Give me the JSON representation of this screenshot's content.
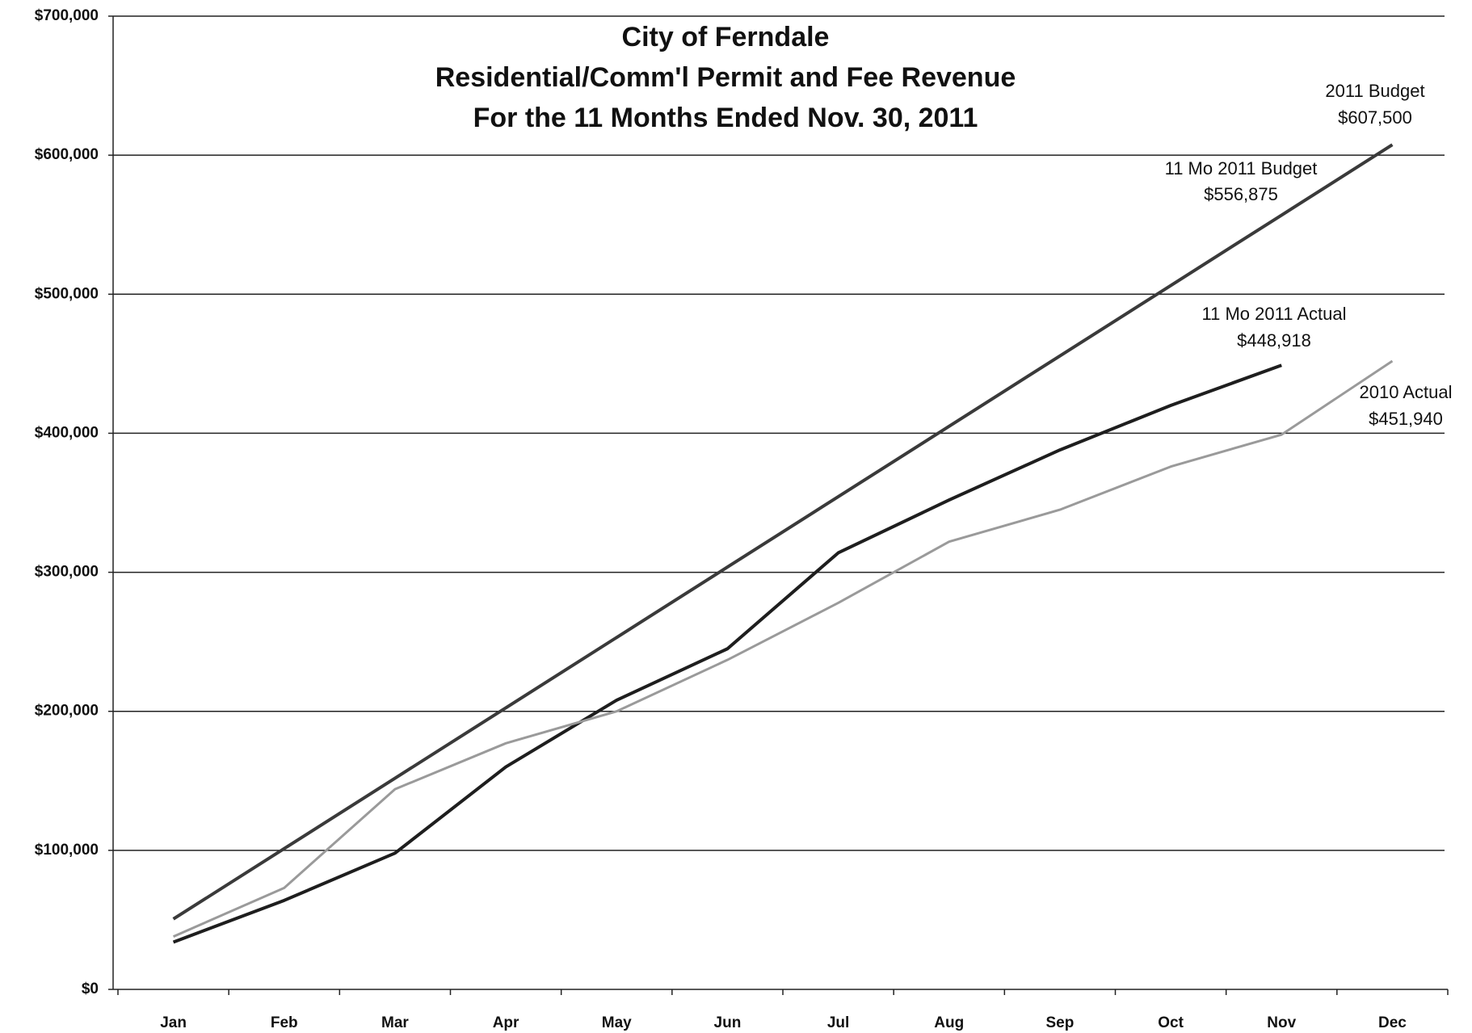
{
  "chart_data": {
    "type": "line",
    "title": [
      "City of Ferndale",
      "Residential/Comm'l Permit and Fee Revenue",
      "For the 11 Months Ended Nov. 30, 2011"
    ],
    "categories": [
      "Jan",
      "Feb",
      "Mar",
      "Apr",
      "May",
      "Jun",
      "Jul",
      "Aug",
      "Sep",
      "Oct",
      "Nov",
      "Dec"
    ],
    "series": [
      {
        "name": "2011 Budget",
        "color": "#3a3a3a",
        "width": 4,
        "values": [
          50625,
          101250,
          151875,
          202500,
          253125,
          303750,
          354375,
          405000,
          455625,
          506250,
          556875,
          607500
        ],
        "value_labels": [
          null,
          null,
          null,
          null,
          null,
          null,
          null,
          null,
          null,
          null,
          "$556,875",
          "$607,500"
        ]
      },
      {
        "name": "11 Mo 2011 Actual",
        "color": "#1e1e1e",
        "width": 4,
        "values": [
          34000,
          64000,
          98000,
          160000,
          208000,
          245000,
          314000,
          352000,
          388000,
          420000,
          448918,
          null
        ],
        "value_labels": [
          null,
          null,
          null,
          null,
          null,
          null,
          null,
          null,
          null,
          null,
          "$448,918",
          null
        ]
      },
      {
        "name": "2010 Actual",
        "color": "#9a9a9a",
        "width": 3,
        "values": [
          38000,
          73000,
          144000,
          177000,
          200000,
          237000,
          278000,
          322000,
          345000,
          376000,
          399000,
          451940
        ],
        "value_labels": [
          null,
          null,
          null,
          null,
          null,
          null,
          null,
          null,
          null,
          null,
          null,
          "$451,940"
        ]
      }
    ],
    "annotations": [
      "11 Mo 2011 Budget"
    ],
    "ylim": [
      0,
      700000
    ],
    "yticks": [
      {
        "value": 0,
        "label": "$0"
      },
      {
        "value": 100000,
        "label": "$100,000"
      },
      {
        "value": 200000,
        "label": "$200,000"
      },
      {
        "value": 300000,
        "label": "$300,000"
      },
      {
        "value": 400000,
        "label": "$400,000"
      },
      {
        "value": 500000,
        "label": "$500,000"
      },
      {
        "value": 600000,
        "label": "$600,000"
      },
      {
        "value": 700000,
        "label": "$700,000"
      }
    ],
    "grid": true
  }
}
